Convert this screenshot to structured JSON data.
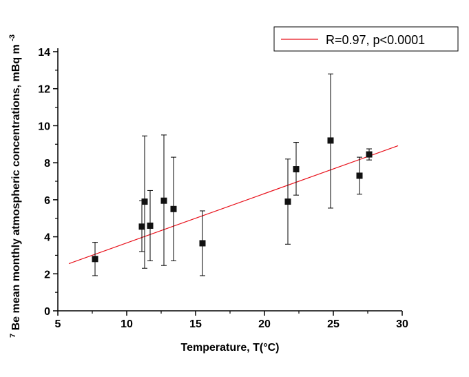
{
  "chart_data": {
    "type": "scatter",
    "xlabel": "Temperature, T(°C)",
    "ylabel": {
      "superscript": "7",
      "main": "Be mean monthly atmospheric concentrations, mBq m",
      "unit_exp": "-3"
    },
    "xlim": [
      5,
      30
    ],
    "ylim": [
      0,
      14
    ],
    "xticks": [
      5,
      10,
      15,
      20,
      25,
      30
    ],
    "yticks": [
      0,
      2,
      4,
      6,
      8,
      10,
      12,
      14
    ],
    "grid": false,
    "legend_position": "top-right",
    "legend": [
      {
        "label": "R=0.97, p<0.0001",
        "kind": "line",
        "color": "#e8101a"
      }
    ],
    "points": [
      {
        "x": 7.7,
        "y": 2.8,
        "ylow": 1.9,
        "yhigh": 3.7
      },
      {
        "x": 11.1,
        "y": 4.55,
        "ylow": 3.2,
        "yhigh": 5.95
      },
      {
        "x": 11.3,
        "y": 5.9,
        "ylow": 2.3,
        "yhigh": 9.45
      },
      {
        "x": 11.7,
        "y": 4.6,
        "ylow": 2.7,
        "yhigh": 6.5
      },
      {
        "x": 12.7,
        "y": 5.95,
        "ylow": 2.45,
        "yhigh": 9.5
      },
      {
        "x": 13.4,
        "y": 5.5,
        "ylow": 2.7,
        "yhigh": 8.3
      },
      {
        "x": 15.5,
        "y": 3.65,
        "ylow": 1.9,
        "yhigh": 5.4
      },
      {
        "x": 21.7,
        "y": 5.9,
        "ylow": 3.6,
        "yhigh": 8.2
      },
      {
        "x": 22.3,
        "y": 7.65,
        "ylow": 6.25,
        "yhigh": 9.1
      },
      {
        "x": 24.8,
        "y": 9.2,
        "ylow": 5.55,
        "yhigh": 12.8
      },
      {
        "x": 26.9,
        "y": 7.3,
        "ylow": 6.3,
        "yhigh": 8.3
      },
      {
        "x": 27.6,
        "y": 8.45,
        "ylow": 8.15,
        "yhigh": 8.75
      }
    ],
    "fit_line": {
      "x": [
        5.8,
        29.7
      ],
      "y": [
        2.55,
        8.92
      ],
      "color": "#e8101a"
    },
    "marker_color": "#111111"
  }
}
